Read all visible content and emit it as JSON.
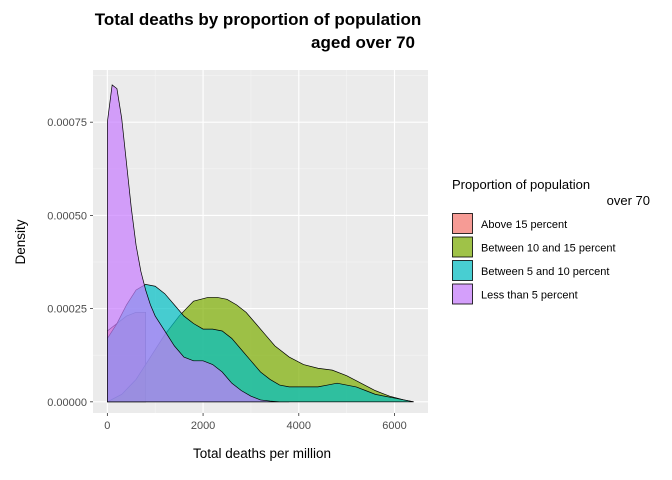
{
  "chart_data": {
    "type": "area",
    "title_lines": [
      "Total deaths by proportion of population",
      "aged over 70"
    ],
    "xlabel": "Total deaths per million",
    "ylabel": "Density",
    "xlim": [
      -300,
      6700
    ],
    "ylim": [
      -3e-05,
      0.00089
    ],
    "x_ticks": [
      0,
      2000,
      4000,
      6000
    ],
    "x_tick_labels": [
      "0",
      "2000",
      "4000",
      "6000"
    ],
    "y_ticks": [
      0,
      0.00025,
      0.0005,
      0.00075
    ],
    "y_tick_labels": [
      "0.00000",
      "0.00025",
      "0.00050",
      "0.00075"
    ],
    "grid": true,
    "panel_background": "#ebebeb",
    "fill_opacity": 0.7,
    "legend": {
      "title_lines": [
        "Proportion of population",
        "over 70"
      ],
      "position": "right"
    },
    "series": [
      {
        "name": "Above 15 percent",
        "color": "#f8766d",
        "x": [
          0,
          200,
          400,
          600,
          800
        ],
        "y": [
          0.00019,
          0.00021,
          0.00023,
          0.00024,
          0.00024
        ]
      },
      {
        "name": "Between 10 and 15 percent",
        "color": "#7cae00",
        "x": [
          0,
          300,
          600,
          900,
          1200,
          1500,
          1800,
          2100,
          2300,
          2500,
          2700,
          2900,
          3100,
          3300,
          3500,
          3800,
          4100,
          4400,
          4700,
          5000,
          5300,
          5600,
          5900,
          6200,
          6400
        ],
        "y": [
          0.0,
          2e-05,
          6e-05,
          0.00012,
          0.00018,
          0.00023,
          0.00027,
          0.00028,
          0.00028,
          0.000275,
          0.00026,
          0.00024,
          0.00021,
          0.00018,
          0.00015,
          0.00012,
          0.0001,
          9e-05,
          8.5e-05,
          7e-05,
          5e-05,
          3e-05,
          1.5e-05,
          5e-06,
          0.0
        ]
      },
      {
        "name": "Between 5 and 10 percent",
        "color": "#00bfc4",
        "x": [
          0,
          200,
          400,
          600,
          800,
          1000,
          1200,
          1400,
          1600,
          1800,
          2000,
          2200,
          2400,
          2600,
          2800,
          3000,
          3200,
          3400,
          3600,
          3800,
          4000,
          4200,
          4400,
          4600,
          4800,
          5000,
          5200,
          5400,
          5600,
          5800,
          6000,
          6200,
          6400
        ],
        "y": [
          0.00017,
          0.00021,
          0.00026,
          0.0003,
          0.000315,
          0.00031,
          0.00029,
          0.00026,
          0.00023,
          0.00021,
          0.000195,
          0.000195,
          0.00019,
          0.00017,
          0.00014,
          0.00011,
          8e-05,
          6e-05,
          4.5e-05,
          4e-05,
          4e-05,
          4e-05,
          4e-05,
          4.5e-05,
          5e-05,
          4.5e-05,
          4e-05,
          3e-05,
          2e-05,
          1.5e-05,
          1e-05,
          5e-06,
          0.0
        ]
      },
      {
        "name": "Less than 5 percent",
        "color": "#c77cff",
        "x": [
          0,
          100,
          200,
          300,
          400,
          500,
          600,
          700,
          800,
          900,
          1000,
          1200,
          1400,
          1600,
          1800,
          2000,
          2200,
          2400,
          2600,
          2800,
          3000,
          3200,
          3400,
          3600,
          3800
        ],
        "y": [
          0.00075,
          0.00085,
          0.00084,
          0.00076,
          0.00064,
          0.00052,
          0.00042,
          0.00035,
          0.0003,
          0.00026,
          0.00023,
          0.00019,
          0.00015,
          0.00012,
          0.00011,
          0.00011,
          0.0001,
          8e-05,
          5e-05,
          3e-05,
          1.5e-05,
          5e-06,
          2e-06,
          0.0,
          0.0
        ]
      }
    ]
  }
}
